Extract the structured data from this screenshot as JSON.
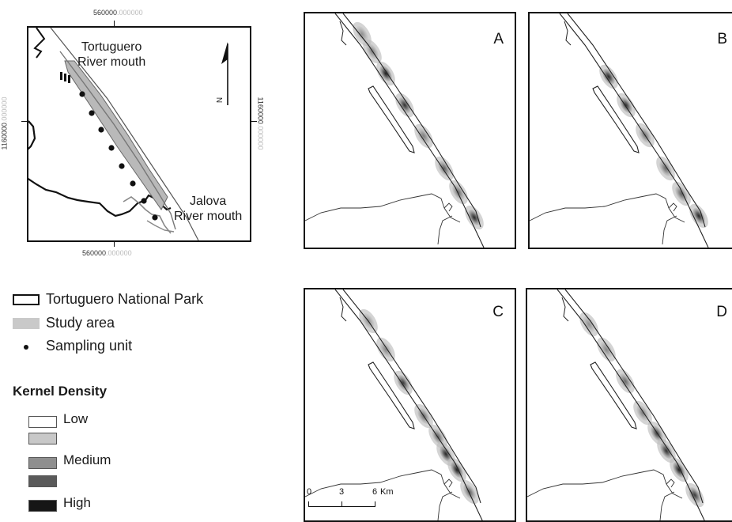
{
  "overview": {
    "coord_top": {
      "main": "560000",
      "dec": ".000000"
    },
    "coord_bottom": {
      "main": "560000",
      "dec": ".000000"
    },
    "coord_left": {
      "main": "1160000",
      "dec": ".000000"
    },
    "coord_right": {
      "main": "1160000",
      "dec": ".000000"
    },
    "label_north_mouth_line1": "Tortuguero",
    "label_north_mouth_line2": "River mouth",
    "label_south_mouth_line1": "Jalova",
    "label_south_mouth_line2": "River mouth",
    "north_arrow_letter": "N"
  },
  "legend": {
    "park_label": "Tortuguero National Park",
    "study_area_label": "Study area",
    "sampling_unit_label": "Sampling unit",
    "kernel_title": "Kernel Density",
    "kernel_levels": [
      {
        "label": "Low",
        "color": "#ffffff"
      },
      {
        "label": "",
        "color": "#c8c8c8"
      },
      {
        "label": "Medium",
        "color": "#8f8f8f"
      },
      {
        "label": "",
        "color": "#5a5a5a"
      },
      {
        "label": "High",
        "color": "#161616"
      }
    ]
  },
  "panels": [
    {
      "letter": "A"
    },
    {
      "letter": "B"
    },
    {
      "letter": "C"
    },
    {
      "letter": "D"
    }
  ],
  "scale_bar": {
    "ticks": [
      "0",
      "3",
      "6"
    ],
    "unit": "Km"
  },
  "colors": {
    "study_area": "#c9c9c9",
    "park_boundary": "#111111",
    "river": "#444444"
  }
}
